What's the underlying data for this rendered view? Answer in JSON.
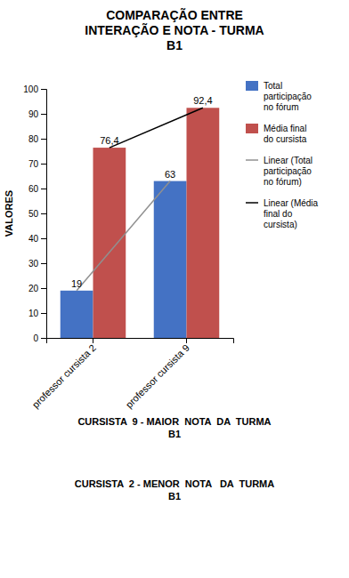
{
  "chart_data": {
    "type": "bar",
    "title": "COMPARAÇÃO ENTRE\nINTERAÇÃO E NOTA - TURMA\nB1",
    "categories": [
      "professor cursista 2",
      "professor cursista 9"
    ],
    "series": [
      {
        "name": "Total\nparticipação\nno fórum",
        "type": "bar",
        "color": "#4472C4",
        "values": [
          19,
          63
        ],
        "data_labels": true
      },
      {
        "name": "Média final\ndo cursista",
        "type": "bar",
        "color": "#C0504D",
        "values": [
          76.4,
          92.4
        ],
        "value_labels": [
          "76,4",
          "92,4"
        ],
        "data_labels": true
      },
      {
        "name": "Linear (Total\nparticipação\nno fórum)",
        "type": "line",
        "color": "#909090",
        "values": [
          19,
          63
        ]
      },
      {
        "name": "Linear (Média\nfinal do\ncursista)",
        "type": "line",
        "color": "#000000",
        "values": [
          76.4,
          92.4
        ]
      }
    ],
    "ylabel": "VALORES",
    "ylim": [
      0,
      100
    ],
    "yticks": [
      0,
      10,
      20,
      30,
      40,
      50,
      60,
      70,
      80,
      90,
      100
    ],
    "grid": false,
    "annotations": [
      "CURSISTA  9 - MAIOR  NOTA  DA  TURMA\nB1",
      "CURSISTA  2 - MENOR  NOTA   DA  TURMA\nB1"
    ]
  }
}
